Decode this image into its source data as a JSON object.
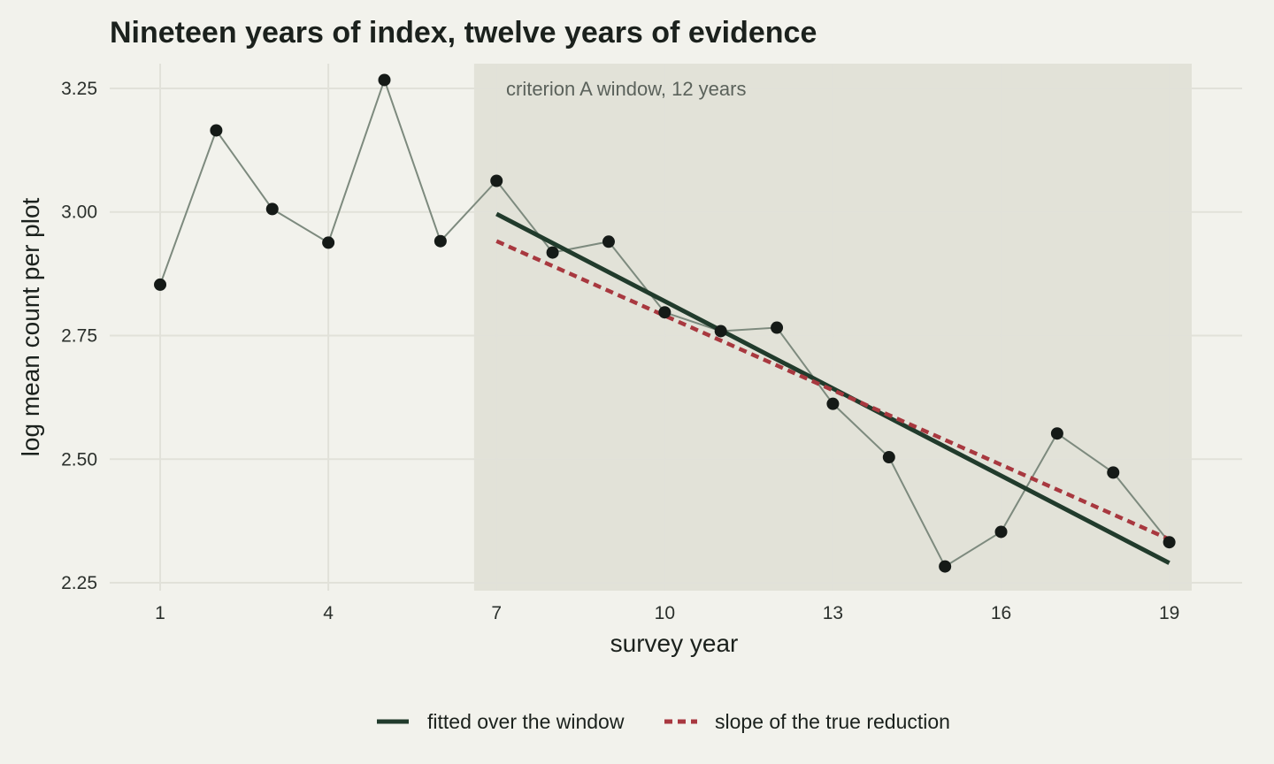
{
  "chart_data": {
    "type": "line",
    "title": "Nineteen years of index, twelve years of evidence",
    "xlabel": "survey year",
    "ylabel": "log mean count per plot",
    "xlim": [
      0.1,
      20.3
    ],
    "ylim": [
      2.234,
      3.3
    ],
    "xticks": [
      1,
      4,
      7,
      10,
      13,
      16,
      19
    ],
    "yticks": [
      2.25,
      2.5,
      2.75,
      3.0,
      3.25
    ],
    "ytick_labels": [
      "2.25",
      "2.50",
      "2.75",
      "3.00",
      "3.25"
    ],
    "grid": true,
    "window": {
      "x_start": 6.6,
      "x_end": 19.4,
      "label": "criterion A window, 12 years"
    },
    "observed": {
      "x": [
        1,
        2,
        3,
        4,
        5,
        6,
        7,
        8,
        9,
        10,
        11,
        12,
        13,
        14,
        15,
        16,
        17,
        18,
        19
      ],
      "y": [
        2.853,
        3.165,
        3.006,
        2.938,
        3.267,
        2.941,
        3.063,
        2.918,
        2.94,
        2.797,
        2.759,
        2.766,
        2.612,
        2.504,
        2.283,
        2.353,
        2.552,
        2.473,
        2.332
      ]
    },
    "series": [
      {
        "name": "fitted over the window",
        "style": "solid",
        "color": "#213b2c",
        "x": [
          7,
          19
        ],
        "y": [
          2.996,
          2.29
        ]
      },
      {
        "name": "slope of the true reduction",
        "style": "dashed",
        "color": "#a8383f",
        "x": [
          7,
          19
        ],
        "y": [
          2.941,
          2.338
        ]
      }
    ],
    "legend_position": "bottom",
    "colors": {
      "background": "#f2f2ec",
      "window_shade": "#e2e2d8",
      "grid": "#e1e1d9",
      "observed_line": "#7d8a7e",
      "points": "#151a17"
    }
  }
}
